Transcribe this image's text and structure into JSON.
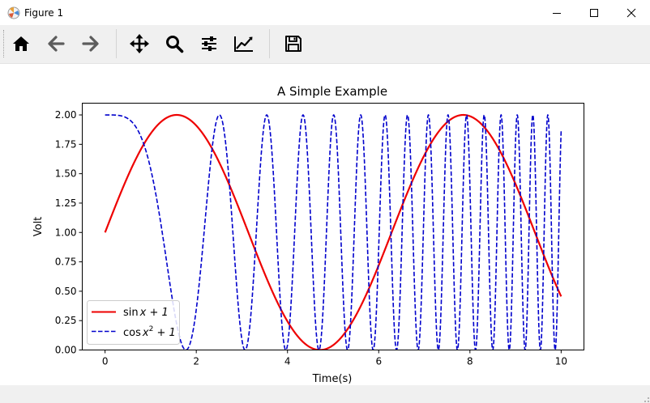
{
  "window": {
    "title": "Figure 1"
  },
  "toolbar": {
    "buttons": [
      {
        "name": "home-button",
        "icon": "home-icon"
      },
      {
        "name": "back-button",
        "icon": "arrow-left-icon"
      },
      {
        "name": "forward-button",
        "icon": "arrow-right-icon"
      },
      {
        "name": "pan-button",
        "icon": "move-icon"
      },
      {
        "name": "zoom-button",
        "icon": "magnifier-icon"
      },
      {
        "name": "subplots-button",
        "icon": "sliders-icon"
      },
      {
        "name": "edit-axis-button",
        "icon": "line-chart-icon"
      },
      {
        "name": "save-button",
        "icon": "floppy-disk-icon"
      }
    ]
  },
  "chart_data": {
    "type": "line",
    "title": "A Simple Example",
    "xlabel": "Time(s)",
    "ylabel": "Volt",
    "xlim": [
      -0.5,
      10.5
    ],
    "ylim": [
      0.0,
      2.1
    ],
    "xticks": [
      "0",
      "2",
      "4",
      "6",
      "8",
      "10"
    ],
    "yticks": [
      "0.00",
      "0.25",
      "0.50",
      "0.75",
      "1.00",
      "1.25",
      "1.50",
      "1.75",
      "2.00"
    ],
    "grid": false,
    "legend_position": "lower-left",
    "x_range": [
      0,
      10
    ],
    "series": [
      {
        "name_parts": {
          "fn": "sin",
          "rest": "x + 1"
        },
        "function": "sin(x)+1",
        "color": "#ee0000",
        "style": "solid"
      },
      {
        "name_parts": {
          "fn": "cos",
          "base": "x",
          "sup": "2",
          "rest": " + 1"
        },
        "function": "cos(x^2)+1",
        "color": "#0000cc",
        "style": "dashed"
      }
    ]
  }
}
